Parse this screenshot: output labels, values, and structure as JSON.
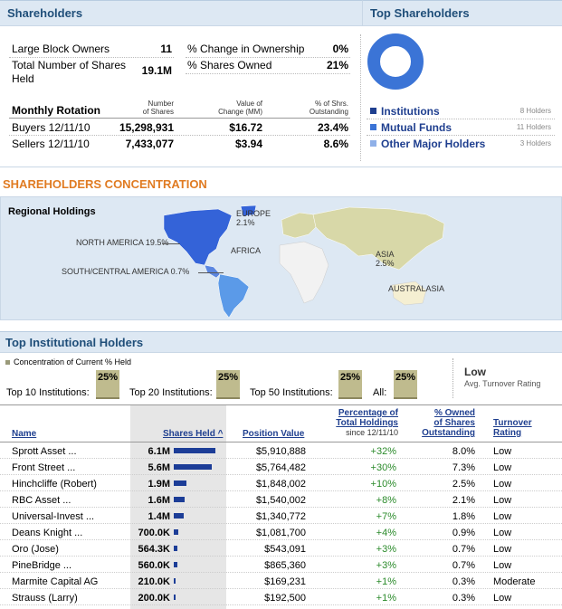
{
  "shareholders": {
    "title": "Shareholders",
    "large_block_label": "Large Block Owners",
    "large_block_value": "11",
    "total_label_1": "Total Number of Shares",
    "total_label_2": "Held",
    "total_value": "19.1M",
    "pct_change_label": "% Change in Ownership",
    "pct_change_value": "0%",
    "pct_owned_label": "% Shares Owned",
    "pct_owned_value": "21%",
    "rotation": {
      "title": "Monthly Rotation",
      "col1_a": "Number",
      "col1_b": "of Shares",
      "col2_a": "Value of",
      "col2_b": "Change (MM)",
      "col3_a": "% of Shrs.",
      "col3_b": "Outstanding",
      "buyers_label": "Buyers 12/11/10",
      "buyers_shares": "15,298,931",
      "buyers_value": "$16.72",
      "buyers_pct": "23.4%",
      "sellers_label": "Sellers 12/11/10",
      "sellers_shares": "7,433,077",
      "sellers_value": "$3.94",
      "sellers_pct": "8.6%"
    }
  },
  "top_shareholders": {
    "title": "Top Shareholders",
    "items": [
      {
        "label": "Institutions",
        "count": "8 Holders",
        "color": "#1f3f8f"
      },
      {
        "label": "Mutual Funds",
        "count": "11 Holders",
        "color": "#3b74d6"
      },
      {
        "label": "Other Major Holders",
        "count": "3 Holders",
        "color": "#8fb0e8"
      }
    ]
  },
  "concentration": {
    "title": "SHAREHOLDERS CONCENTRATION",
    "regional_title": "Regional Holdings",
    "europe": "EUROPE",
    "europe_pct": "2.1%",
    "north_america": "NORTH AMERICA 19.5%",
    "africa": "AFRICA",
    "asia": "ASIA",
    "asia_pct": "2.5%",
    "south_america": "SOUTH/CENTRAL AMERICA 0.7%",
    "australasia": "AUSTRALASIA"
  },
  "institutional": {
    "title": "Top Institutional Holders",
    "concentration_label": "Concentration of Current % Held",
    "top10_label": "Top 10 Institutions:",
    "top10_value": "25%",
    "top20_label": "Top 20 Institutions:",
    "top20_value": "25%",
    "top50_label": "Top 50 Institutions:",
    "top50_value": "25%",
    "all_label": "All:",
    "all_value": "25%",
    "turnover_value": "Low",
    "turnover_label": "Avg. Turnover Rating",
    "headers": {
      "name": "Name",
      "shares": "Shares Held",
      "position": "Position Value",
      "pct_total_1": "Percentage of",
      "pct_total_2": "Total Holdings",
      "pct_total_3": "since 12/11/10",
      "owned_1": "% Owned",
      "owned_2": "of Shares",
      "owned_3": "Outstanding",
      "turnover_1": "Turnover",
      "turnover_2": "Rating"
    },
    "rows": [
      {
        "name": "Sprott Asset ...",
        "shares": "6.1M",
        "bar": 6.1,
        "position": "$5,910,888",
        "pct": "+32%",
        "owned": "8.0%",
        "turnover": "Low"
      },
      {
        "name": "Front Street ...",
        "shares": "5.6M",
        "bar": 5.6,
        "position": "$5,764,482",
        "pct": "+30%",
        "owned": "7.3%",
        "turnover": "Low"
      },
      {
        "name": "Hinchcliffe (Robert)",
        "shares": "1.9M",
        "bar": 1.9,
        "position": "$1,848,002",
        "pct": "+10%",
        "owned": "2.5%",
        "turnover": "Low"
      },
      {
        "name": "RBC Asset ...",
        "shares": "1.6M",
        "bar": 1.6,
        "position": "$1,540,002",
        "pct": "+8%",
        "owned": "2.1%",
        "turnover": "Low"
      },
      {
        "name": "Universal-Invest ...",
        "shares": "1.4M",
        "bar": 1.4,
        "position": "$1,340,772",
        "pct": "+7%",
        "owned": "1.8%",
        "turnover": "Low"
      },
      {
        "name": "Deans Knight ...",
        "shares": "700.0K",
        "bar": 0.7,
        "position": "$1,081,700",
        "pct": "+4%",
        "owned": "0.9%",
        "turnover": "Low"
      },
      {
        "name": "Oro (Jose)",
        "shares": "564.3K",
        "bar": 0.5643,
        "position": "$543,091",
        "pct": "+3%",
        "owned": "0.7%",
        "turnover": "Low"
      },
      {
        "name": "PineBridge ...",
        "shares": "560.0K",
        "bar": 0.56,
        "position": "$865,360",
        "pct": "+3%",
        "owned": "0.7%",
        "turnover": "Low"
      },
      {
        "name": "Marmite Capital AG",
        "shares": "210.0K",
        "bar": 0.21,
        "position": "$169,231",
        "pct": "+1%",
        "owned": "0.3%",
        "turnover": "Moderate"
      },
      {
        "name": "Strauss (Larry)",
        "shares": "200.0K",
        "bar": 0.2,
        "position": "$192,500",
        "pct": "+1%",
        "owned": "0.3%",
        "turnover": "Low"
      }
    ]
  }
}
